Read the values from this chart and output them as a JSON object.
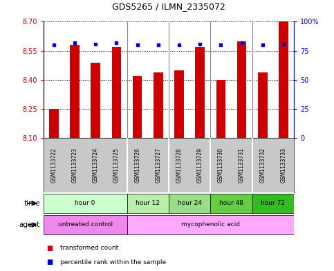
{
  "title": "GDS5265 / ILMN_2335072",
  "samples": [
    "GSM1133722",
    "GSM1133723",
    "GSM1133724",
    "GSM1133725",
    "GSM1133726",
    "GSM1133727",
    "GSM1133728",
    "GSM1133729",
    "GSM1133730",
    "GSM1133731",
    "GSM1133732",
    "GSM1133733"
  ],
  "transformed_counts": [
    8.25,
    8.58,
    8.49,
    8.57,
    8.42,
    8.44,
    8.45,
    8.57,
    8.4,
    8.6,
    8.44,
    8.7
  ],
  "percentile_ranks": [
    80,
    82,
    81,
    82,
    80,
    80,
    80,
    81,
    80,
    82,
    80,
    81
  ],
  "y_min": 8.1,
  "y_max": 8.7,
  "y_ticks": [
    8.1,
    8.25,
    8.4,
    8.55,
    8.7
  ],
  "y2_ticks": [
    0,
    25,
    50,
    75,
    100
  ],
  "bar_color": "#cc0000",
  "dot_color": "#0000cc",
  "time_groups": [
    {
      "label": "hour 0",
      "start": 0,
      "end": 3
    },
    {
      "label": "hour 12",
      "start": 4,
      "end": 5
    },
    {
      "label": "hour 24",
      "start": 6,
      "end": 7
    },
    {
      "label": "hour 48",
      "start": 8,
      "end": 9
    },
    {
      "label": "hour 72",
      "start": 10,
      "end": 11
    }
  ],
  "time_colors": [
    "#ccffcc",
    "#bbeeaa",
    "#99dd88",
    "#66cc44",
    "#33bb22"
  ],
  "agent_groups": [
    {
      "label": "untreated control",
      "start": 0,
      "end": 3
    },
    {
      "label": "mycophenolic acid",
      "start": 4,
      "end": 11
    }
  ],
  "agent_colors": [
    "#ee88ee",
    "#ffaaff"
  ],
  "sample_bg_color": "#c8c8c8",
  "divider_color": "#aaaaaa",
  "left_axis_color": "#cc0000",
  "right_axis_color": "#0000cc",
  "group_dividers": [
    3.5,
    5.5,
    7.5,
    9.5
  ],
  "bar_width": 0.45
}
